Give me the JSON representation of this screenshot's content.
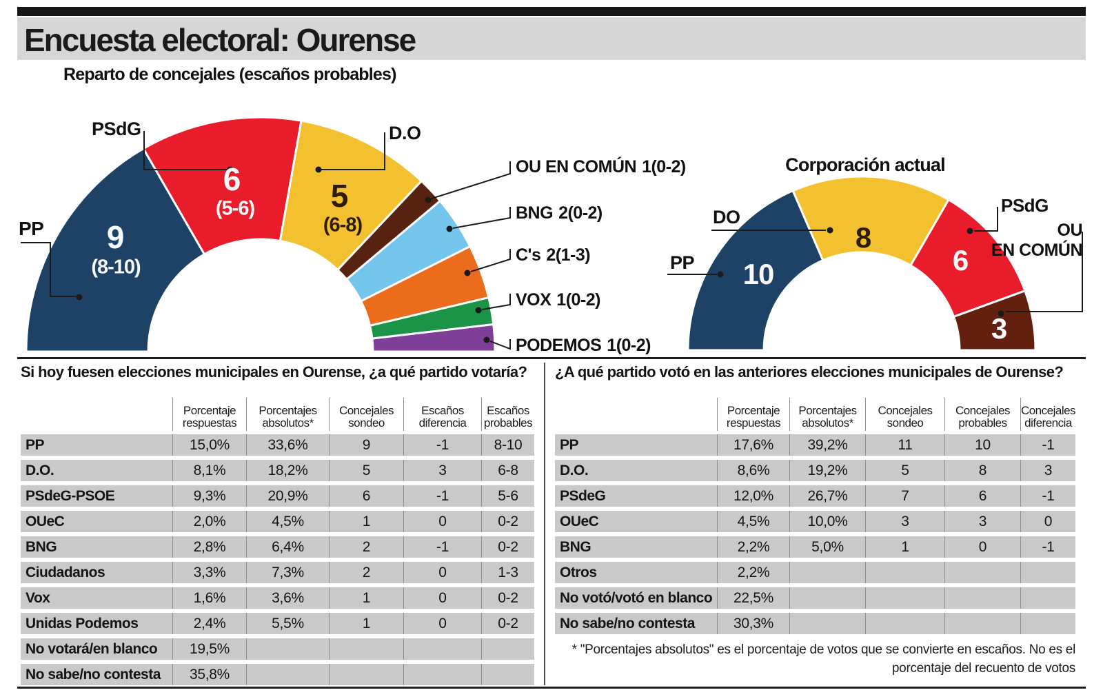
{
  "header": {
    "title": "Encuesta electoral: Ourense"
  },
  "charts": {
    "left_title": "Reparto de concejales (escaños probables)",
    "right_title": "Corporación actual",
    "left_callouts": {
      "pp": "PP",
      "psdg": "PSdG",
      "do": "D.O"
    },
    "left_list": [
      {
        "name": "OU EN COMÚN",
        "value": "1(0-2)"
      },
      {
        "name": "BNG",
        "value": "2(0-2)"
      },
      {
        "name": "C's",
        "value": "2(1-3)"
      },
      {
        "name": "VOX",
        "value": "1(0-2)"
      },
      {
        "name": "PODEMOS",
        "value": "1(0-2)"
      }
    ],
    "right_callouts": {
      "do": "DO",
      "psdg": "PSdG",
      "pp": "PP",
      "ou": [
        "OU",
        "EN COMÚN"
      ]
    }
  },
  "chart_data": [
    {
      "type": "half-donut",
      "title": "Reparto de concejales (escaños probables)",
      "total_seats": 27,
      "segments": [
        {
          "party": "PP",
          "seats": 9,
          "range": "8-10",
          "range_label": "(8-10)",
          "color": "#1d4265"
        },
        {
          "party": "PSdG",
          "seats": 6,
          "range": "5-6",
          "range_label": "(5-6)",
          "color": "#e81c2a"
        },
        {
          "party": "D.O",
          "seats": 5,
          "range": "6-8",
          "range_label": "(6-8)",
          "color": "#f3c12f"
        },
        {
          "party": "OU EN COMÚN",
          "seats": 1,
          "range": "0-2",
          "color": "#57220f"
        },
        {
          "party": "BNG",
          "seats": 2,
          "range": "0-2",
          "color": "#74c5ec"
        },
        {
          "party": "C's",
          "seats": 2,
          "range": "1-3",
          "color": "#ec6c1d"
        },
        {
          "party": "VOX",
          "seats": 1,
          "range": "0-2",
          "color": "#1b9447"
        },
        {
          "party": "PODEMOS",
          "seats": 1,
          "range": "0-2",
          "color": "#7d3f97"
        }
      ]
    },
    {
      "type": "half-donut",
      "title": "Corporación actual",
      "total_seats": 27,
      "segments": [
        {
          "party": "PP",
          "seats": 10,
          "color": "#1d4265"
        },
        {
          "party": "DO",
          "seats": 8,
          "color": "#f3c12f"
        },
        {
          "party": "PSdG",
          "seats": 6,
          "color": "#e81c2a"
        },
        {
          "party": "OU EN COMÚN",
          "seats": 3,
          "color": "#63200f"
        }
      ]
    }
  ],
  "tables": {
    "left": {
      "title": "Si hoy fuesen elecciones municipales en Ourense, ¿a qué partido votaría?",
      "columns": [
        "Porcentaje respuestas",
        "Porcentajes absolutos*",
        "Concejales sondeo",
        "Escaños diferencia",
        "Escaños probables"
      ],
      "rows": [
        {
          "party": "PP",
          "cells": [
            "15,0%",
            "33,6%",
            "9",
            "-1",
            "8-10"
          ]
        },
        {
          "party": "D.O.",
          "cells": [
            "8,1%",
            "18,2%",
            "5",
            "3",
            "6-8"
          ]
        },
        {
          "party": "PSdeG-PSOE",
          "cells": [
            "9,3%",
            "20,9%",
            "6",
            "-1",
            "5-6"
          ]
        },
        {
          "party": "OUeC",
          "cells": [
            "2,0%",
            "4,5%",
            "1",
            "0",
            "0-2"
          ]
        },
        {
          "party": "BNG",
          "cells": [
            "2,8%",
            "6,4%",
            "2",
            "-1",
            "0-2"
          ]
        },
        {
          "party": "Ciudadanos",
          "cells": [
            "3,3%",
            "7,3%",
            "2",
            "0",
            "1-3"
          ]
        },
        {
          "party": "Vox",
          "cells": [
            "1,6%",
            "3,6%",
            "1",
            "0",
            "0-2"
          ]
        },
        {
          "party": "Unidas Podemos",
          "cells": [
            "2,4%",
            "5,5%",
            "1",
            "0",
            "0-2"
          ]
        },
        {
          "party": "No votará/en blanco",
          "cells": [
            "19,5%",
            "",
            "",
            "",
            ""
          ]
        },
        {
          "party": "No sabe/no contesta",
          "cells": [
            "35,8%",
            "",
            "",
            "",
            ""
          ]
        }
      ]
    },
    "right": {
      "title": "¿A qué partido votó en las anteriores elecciones municipales de Ourense?",
      "columns": [
        "Porcentaje respuestas",
        "Porcentajes absolutos*",
        "Concejales sondeo",
        "Concejales probables",
        "Concejales diferencia"
      ],
      "rows": [
        {
          "party": "PP",
          "cells": [
            "17,6%",
            "39,2%",
            "11",
            "10",
            "-1"
          ]
        },
        {
          "party": "D.O.",
          "cells": [
            "8,6%",
            "19,2%",
            "5",
            "8",
            "3"
          ]
        },
        {
          "party": "PSdeG",
          "cells": [
            "12,0%",
            "26,7%",
            "7",
            "6",
            "-1"
          ]
        },
        {
          "party": "OUeC",
          "cells": [
            "4,5%",
            "10,0%",
            "3",
            "3",
            "0"
          ]
        },
        {
          "party": "BNG",
          "cells": [
            "2,2%",
            "5,0%",
            "1",
            "0",
            "-1"
          ]
        },
        {
          "party": "Otros",
          "cells": [
            "2,2%",
            "",
            "",
            "",
            ""
          ]
        },
        {
          "party": "No votó/votó en blanco",
          "cells": [
            "22,5%",
            "",
            "",
            "",
            ""
          ]
        },
        {
          "party": "No sabe/no contesta",
          "cells": [
            "30,3%",
            "",
            "",
            "",
            ""
          ]
        }
      ]
    }
  },
  "footnote": "* \"Porcentajes absolutos\" es el porcentaje de votos que se convierte en escaños. No es el porcentaje del recuento de votos"
}
